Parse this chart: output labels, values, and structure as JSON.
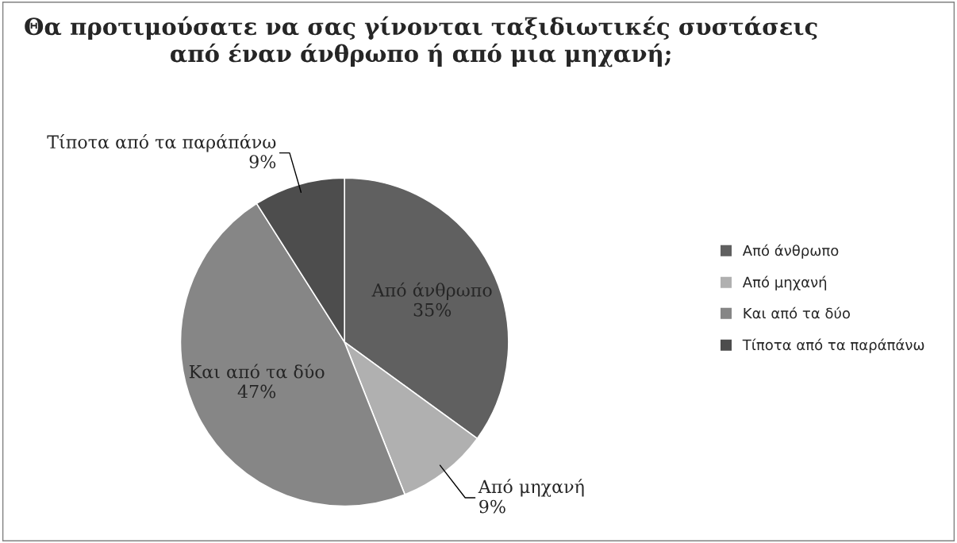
{
  "chart_data": {
    "type": "pie",
    "title": "Θα προτιμούσατε να σας γίνονται ταξιδιωτικές συστάσεις από έναν άνθρωπο ή από μια μηχανή;",
    "categories": [
      "Από άνθρωπο",
      "Από μηχανή",
      "Και από τα δύο",
      "Τίποτα από τα παράπάνω"
    ],
    "values": [
      35,
      9,
      47,
      9
    ],
    "value_labels": [
      "35%",
      "9%",
      "47%",
      "9%"
    ],
    "colors": [
      "#606060",
      "#b0b0b0",
      "#868686",
      "#4d4d4d"
    ],
    "legend": "right"
  }
}
